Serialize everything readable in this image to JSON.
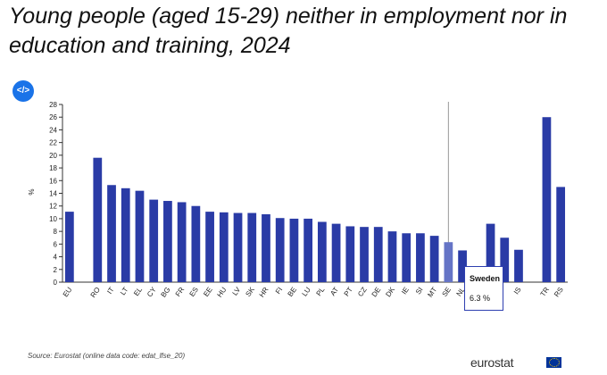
{
  "title": "Young people (aged 15-29) neither in employment nor in education and training, 2024",
  "embed_label": "</>",
  "source": "Source: Eurostat (online data code: edat_lfse_20)",
  "logo_text": "eurostat",
  "tooltip": {
    "country": "Sweden",
    "value_text": "6.3 %"
  },
  "colors": {
    "bar": "#2a3ba6",
    "bar_highlight": "#6574c6",
    "axis": "#333333"
  },
  "chart_data": {
    "type": "bar",
    "ylabel": "%",
    "ylim": [
      0,
      28
    ],
    "yticks": [
      0,
      2,
      4,
      6,
      8,
      10,
      12,
      14,
      16,
      18,
      20,
      22,
      24,
      26,
      28
    ],
    "grid": false,
    "highlight": "SE",
    "categories": [
      "EU",
      "",
      "RO",
      "IT",
      "LT",
      "EL",
      "CY",
      "BG",
      "FR",
      "ES",
      "EE",
      "HU",
      "LV",
      "SK",
      "HR",
      "FI",
      "BE",
      "LU",
      "PL",
      "AT",
      "PT",
      "CZ",
      "DE",
      "DK",
      "IE",
      "SI",
      "MT",
      "SE",
      "NL",
      "",
      "",
      "",
      "IS",
      "",
      "TR",
      "RS"
    ],
    "values": [
      11.1,
      null,
      19.6,
      15.3,
      14.8,
      14.4,
      13.0,
      12.8,
      12.6,
      12.0,
      11.1,
      11.0,
      10.9,
      10.9,
      10.7,
      10.1,
      10.0,
      10.0,
      9.5,
      9.2,
      8.8,
      8.7,
      8.7,
      8.0,
      7.7,
      7.7,
      7.3,
      6.3,
      5.0,
      null,
      9.2,
      7.0,
      5.1,
      null,
      26.0,
      15.0
    ]
  }
}
